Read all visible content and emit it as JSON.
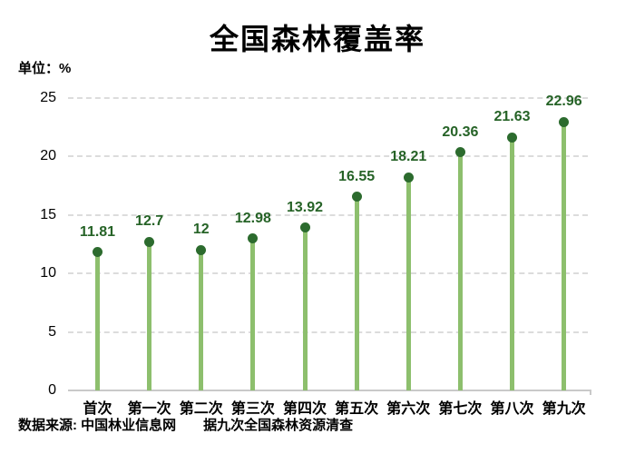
{
  "title": "全国森林覆盖率",
  "unit_label": "单位：%",
  "footer": {
    "source": "数据来源: 中国林业信息网",
    "note": "据九次全国森林资源清查"
  },
  "colors": {
    "stem": "#8dbf6d",
    "dot": "#2c6b2e",
    "value_label": "#266327",
    "gridline": "#dcdcdc",
    "axis_line": "#c9c9c9",
    "text": "#000000"
  },
  "chart_data": {
    "type": "bar",
    "style": "lollipop",
    "title": "全国森林覆盖率",
    "xlabel": "",
    "ylabel": "单位：%",
    "categories": [
      "首次",
      "第一次",
      "第二次",
      "第三次",
      "第四次",
      "第五次",
      "第六次",
      "第七次",
      "第八次",
      "第九次"
    ],
    "values": [
      11.81,
      12.7,
      12,
      12.98,
      13.92,
      16.55,
      18.21,
      20.36,
      21.63,
      22.96
    ],
    "value_labels": [
      "11.81",
      "12.7",
      "12",
      "12.98",
      "13.92",
      "16.55",
      "18.21",
      "20.36",
      "21.63",
      "22.96"
    ],
    "ylim": [
      0,
      25
    ],
    "yticks": [
      0,
      5,
      10,
      15,
      20,
      25
    ],
    "grid": "dashed-horizontal",
    "legend": "none"
  }
}
